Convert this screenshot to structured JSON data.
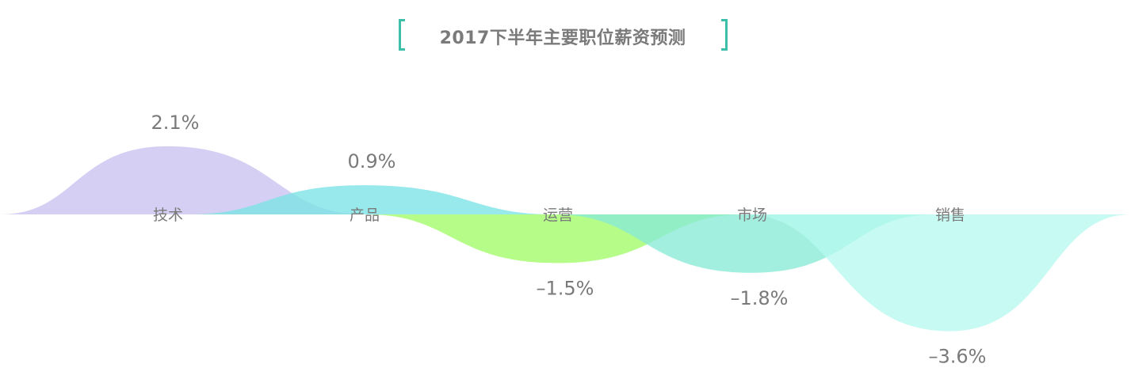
{
  "chart_data": {
    "type": "area",
    "title": "2017下半年主要职位薪资预测",
    "categories": [
      "技术",
      "产品",
      "运营",
      "市场",
      "销售"
    ],
    "values": [
      2.1,
      0.9,
      -1.5,
      -1.8,
      -3.6
    ],
    "value_labels": [
      "2.1%",
      "0.9%",
      "–1.5%",
      "–1.8%",
      "–3.6%"
    ],
    "colors": [
      "#c9c1f1",
      "#7be3e6",
      "#a0fc67",
      "#88ead6",
      "#b6f8ee"
    ],
    "unit": "%",
    "grid": false,
    "legend": "none"
  }
}
